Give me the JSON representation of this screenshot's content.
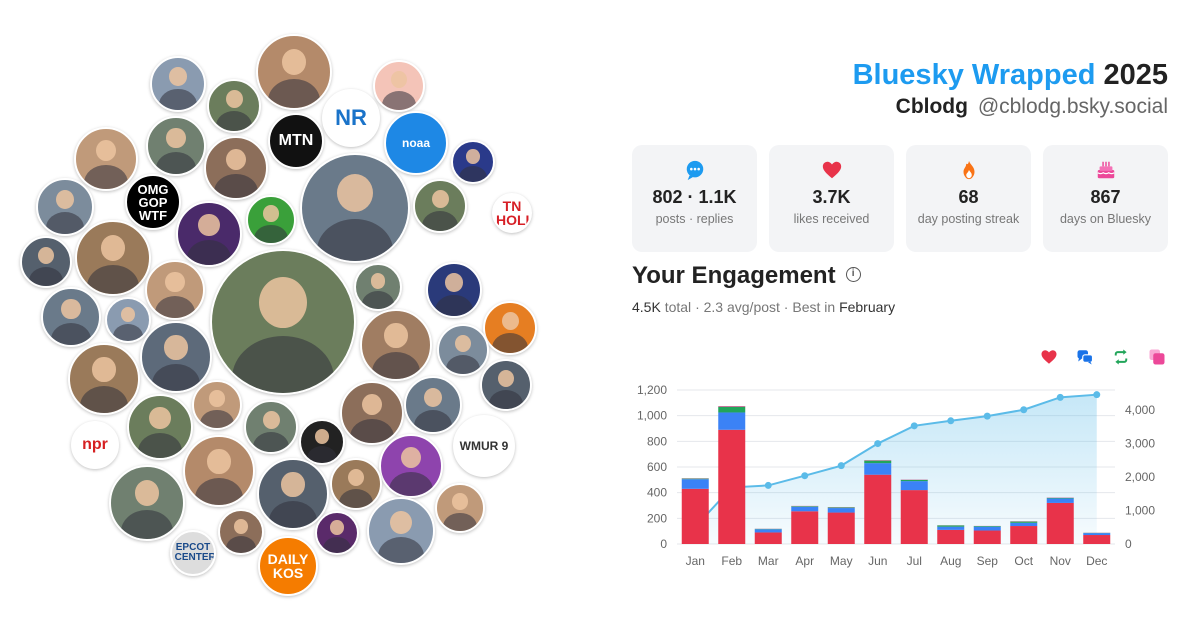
{
  "header": {
    "brand": "Bluesky Wrapped",
    "year": "2025",
    "name": "Cblodg",
    "handle": "@cblodg.bsky.social"
  },
  "stats": [
    {
      "icon": "chat-bubble-icon",
      "value": "802 · 1.1K",
      "label": "posts · replies",
      "color": "#1d9bf0"
    },
    {
      "icon": "heart-icon",
      "value": "3.7K",
      "label": "likes received",
      "color": "#e8334a"
    },
    {
      "icon": "flame-icon",
      "value": "68",
      "label": "day posting streak",
      "color": "#f97316"
    },
    {
      "icon": "cake-icon",
      "value": "867",
      "label": "days on Bluesky",
      "color": "#ec4899"
    }
  ],
  "engagement": {
    "title": "Your Engagement",
    "total": "4.5K",
    "total_word": "total",
    "avg": "2.3 avg/post",
    "best_prefix": "Best in",
    "best_month": "February"
  },
  "legend": [
    {
      "icon": "heart-icon",
      "color": "#e8334a"
    },
    {
      "icon": "reply-bubbles-icon",
      "color": "#1a73e8"
    },
    {
      "icon": "repost-icon",
      "color": "#22a55a"
    },
    {
      "icon": "quote-icon",
      "color": "#ec4899"
    }
  ],
  "logos": {
    "nr": "NR",
    "mtn": "MTN",
    "omg": "OMG GOP WTF",
    "tn": "TN HOLLER",
    "noaa": "noaa",
    "npr": "npr",
    "wmur": "WMUR 9",
    "epcot": "EPCOT CENTER",
    "daily": "DAILY KOS"
  },
  "chart_data": {
    "type": "bar",
    "categories": [
      "Jan",
      "Feb",
      "Mar",
      "Apr",
      "May",
      "Jun",
      "Jul",
      "Aug",
      "Sep",
      "Oct",
      "Nov",
      "Dec"
    ],
    "series": [
      {
        "values": [
          430,
          890,
          90,
          255,
          245,
          540,
          420,
          110,
          105,
          140,
          320,
          70
        ],
        "color": "#e8334a"
      },
      {
        "values": [
          75,
          135,
          25,
          35,
          35,
          90,
          70,
          25,
          30,
          25,
          35,
          15
        ],
        "color": "#3b82f6"
      },
      {
        "values": [
          5,
          45,
          3,
          5,
          5,
          20,
          10,
          10,
          5,
          10,
          5,
          2
        ],
        "color": "#22a55a"
      },
      {
        "values": [
          2,
          5,
          1,
          2,
          2,
          3,
          2,
          1,
          1,
          2,
          2,
          1
        ],
        "color": "#ec4899"
      }
    ],
    "cumulative": {
      "values": [
        510,
        1690,
        1750,
        2040,
        2340,
        3000,
        3530,
        3680,
        3820,
        4010,
        4380,
        4460
      ],
      "color": "#5bbbe8"
    },
    "ylim": [
      0,
      1200
    ],
    "yticks": [
      0,
      200,
      400,
      600,
      800,
      1000,
      1200
    ],
    "y2lim": [
      0,
      4600
    ],
    "y2ticks": [
      0,
      1000,
      2000,
      3000,
      4000
    ],
    "ytick_labels": [
      "0",
      "200",
      "400",
      "600",
      "800",
      "1,000",
      "1,200"
    ],
    "y2tick_labels": [
      "0",
      "1,000",
      "2,000",
      "3,000",
      "4,000"
    ],
    "grid": true
  }
}
